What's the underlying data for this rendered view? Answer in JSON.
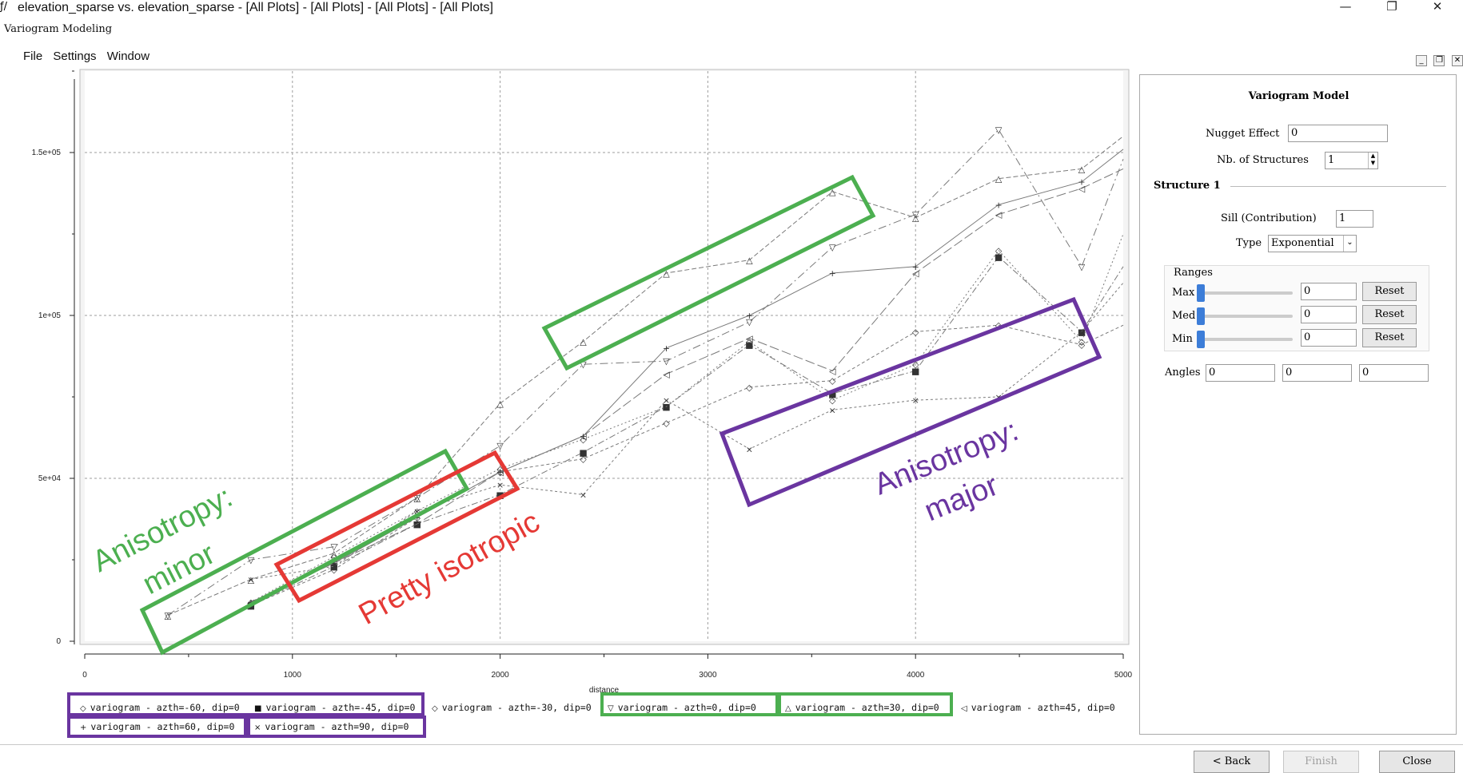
{
  "window": {
    "title": "elevation_sparse vs. elevation_sparse - [All Plots] - [All Plots] - [All Plots] - [All Plots]",
    "app_icon": "variogram-app-icon",
    "controls": [
      "minimize-icon",
      "restore-icon",
      "close-icon"
    ]
  },
  "subtitle": "Variogram Modeling",
  "menu": [
    "File",
    "Settings",
    "Window"
  ],
  "chart_data": {
    "type": "line",
    "xlabel": "distance",
    "ylabel": "",
    "xlim": [
      0,
      5000
    ],
    "ylim": [
      0,
      175000
    ],
    "grid": true,
    "x_ticks": [
      "0",
      "1000",
      "2000",
      "3000",
      "4000",
      "5000"
    ],
    "y_ticks": [
      "0",
      "5e+04",
      "1e+05",
      "1.5e+05"
    ],
    "series": [
      {
        "name": "variogram - azth=-60, dip=0",
        "symbol": "◇",
        "dash": "4 3",
        "x": [
          800,
          1200,
          1600,
          2000,
          2400,
          2800,
          3200,
          3600,
          4000,
          4400,
          4800,
          5000
        ],
        "y": [
          11000,
          22000,
          38000,
          52000,
          56000,
          67000,
          78000,
          80000,
          95000,
          97000,
          91000,
          97000
        ]
      },
      {
        "name": "variogram - azth=-45, dip=0",
        "symbol": "■",
        "dash": "8 3 2 3",
        "x": [
          800,
          1200,
          1600,
          2000,
          2400,
          2800,
          3200,
          3600,
          4000,
          4400,
          4800,
          5000
        ],
        "y": [
          11000,
          23000,
          36000,
          45000,
          58000,
          72000,
          91000,
          76000,
          83000,
          118000,
          95000,
          115000
        ]
      },
      {
        "name": "variogram - azth=-30, dip=0",
        "symbol": "◇",
        "dash": "2 3",
        "x": [
          800,
          1200,
          1600,
          2000,
          2400,
          2800,
          3200,
          3600,
          4000,
          4400,
          4800,
          5000
        ],
        "y": [
          12000,
          26000,
          40000,
          53000,
          62000,
          72000,
          92000,
          74000,
          85000,
          120000,
          92000,
          125000
        ]
      },
      {
        "name": "variogram - azth=0, dip=0",
        "symbol": "▽",
        "dash": "10 4 2 4",
        "x": [
          400,
          800,
          1200,
          1600,
          2000,
          2400,
          2800,
          3200,
          3600,
          4000,
          4400,
          4800,
          5000
        ],
        "y": [
          8000,
          25000,
          29000,
          44000,
          60000,
          85000,
          86000,
          98000,
          121000,
          131000,
          157000,
          115000,
          148000
        ]
      },
      {
        "name": "variogram - azth=30, dip=0",
        "symbol": "△",
        "dash": "6 3",
        "x": [
          400,
          800,
          1200,
          1600,
          2000,
          2400,
          2800,
          3200,
          3600,
          4000,
          4400,
          4800,
          5000
        ],
        "y": [
          8000,
          19000,
          27000,
          44000,
          73000,
          92000,
          113000,
          117000,
          138000,
          130000,
          142000,
          145000,
          155000
        ]
      },
      {
        "name": "variogram - azth=45, dip=0",
        "symbol": "◁",
        "dash": "12 4",
        "x": [
          800,
          1200,
          1600,
          2000,
          2400,
          2800,
          3200,
          3600,
          4000,
          4400,
          4800,
          5000
        ],
        "y": [
          12000,
          24000,
          36000,
          52000,
          63000,
          82000,
          93000,
          83000,
          113000,
          131000,
          139000,
          145000
        ]
      },
      {
        "name": "variogram - azth=60, dip=0",
        "symbol": "+",
        "dash": "",
        "x": [
          800,
          1200,
          1600,
          2000,
          2400,
          2800,
          3200,
          3600,
          4000,
          4400,
          4800,
          5000
        ],
        "y": [
          12000,
          24000,
          38000,
          52000,
          63000,
          90000,
          100000,
          113000,
          115000,
          134000,
          141000,
          151000
        ]
      },
      {
        "name": "variogram - azth=90, dip=0",
        "symbol": "×",
        "dash": "3 3",
        "x": [
          800,
          1200,
          1600,
          2000,
          2400,
          2800,
          3200,
          3600,
          4000,
          4400,
          4800,
          5000
        ],
        "y": [
          19000,
          23000,
          40000,
          48000,
          45000,
          74000,
          59000,
          71000,
          74000,
          75000,
          95000,
          110000
        ]
      }
    ]
  },
  "legend_rows": [
    [
      {
        "symbol": "◇",
        "label": "variogram - azth=-60, dip=0"
      },
      {
        "symbol": "■",
        "label": "variogram - azth=-45, dip=0"
      },
      {
        "symbol": "◇",
        "label": "variogram - azth=-30, dip=0"
      },
      {
        "symbol": "▽",
        "label": "variogram - azth=0, dip=0"
      },
      {
        "symbol": "△",
        "label": "variogram - azth=30, dip=0"
      },
      {
        "symbol": "◁",
        "label": "variogram - azth=45, dip=0"
      }
    ],
    [
      {
        "symbol": "+",
        "label": "variogram - azth=60, dip=0"
      },
      {
        "symbol": "×",
        "label": "variogram - azth=90, dip=0"
      }
    ]
  ],
  "annotations": {
    "minor": {
      "line1": "Anisotropy:",
      "line2": "minor",
      "color": "#4caf50"
    },
    "isotropic": {
      "text": "Pretty isotropic",
      "color": "#e53935"
    },
    "major": {
      "line1": "Anisotropy:",
      "line2": "major",
      "color": "#6a35a0"
    }
  },
  "panel": {
    "title": "Variogram Model",
    "nugget_label": "Nugget Effect",
    "nugget_value": "0",
    "nb_structures_label": "Nb. of Structures",
    "nb_structures_value": "1",
    "structure_title": "Structure 1",
    "sill_label": "Sill (Contribution)",
    "sill_value": "1",
    "type_label": "Type",
    "type_value": "Exponential",
    "ranges_title": "Ranges",
    "ranges": [
      {
        "label": "Max",
        "value": "0",
        "reset": "Reset",
        "level": 0
      },
      {
        "label": "Med",
        "value": "0",
        "reset": "Reset",
        "level": 0
      },
      {
        "label": "Min",
        "value": "0",
        "reset": "Reset",
        "level": 0
      }
    ],
    "angles_label": "Angles",
    "angles": [
      "0",
      "0",
      "0"
    ]
  },
  "buttons": {
    "back": "< Back",
    "finish": "Finish",
    "close": "Close"
  }
}
